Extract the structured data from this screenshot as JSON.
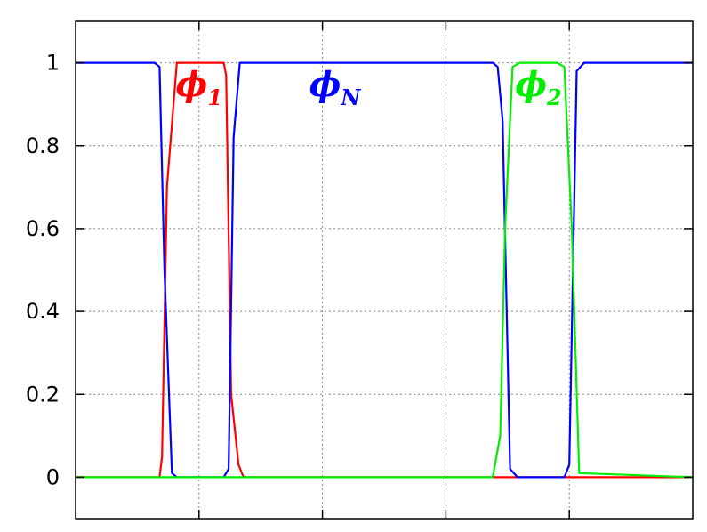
{
  "chart_data": {
    "type": "line",
    "title": "",
    "xlabel": "",
    "ylabel": "",
    "xlim": [
      0,
      5
    ],
    "ylim": [
      -0.1,
      1.1
    ],
    "grid": true,
    "y_ticks": [
      {
        "value": 0,
        "label": "0"
      },
      {
        "value": 0.2,
        "label": "0.2"
      },
      {
        "value": 0.4,
        "label": "0.4"
      },
      {
        "value": 0.6,
        "label": "0.6"
      },
      {
        "value": 0.8,
        "label": "0.8"
      },
      {
        "value": 1,
        "label": "1"
      }
    ],
    "x_ticks": [
      1,
      2,
      3,
      4
    ],
    "series": [
      {
        "name": "phi_1",
        "label_main": "ϕ",
        "label_sub": "1",
        "label_at": [
          1.0,
          0.92
        ],
        "color": "#ff0000",
        "x": [
          0,
          0.68,
          0.7,
          0.74,
          0.82,
          0.9,
          1.2,
          1.22,
          1.26,
          1.32,
          1.36,
          5
        ],
        "y": [
          0,
          0,
          0.05,
          0.7,
          1.0,
          1.0,
          1.0,
          0.97,
          0.2,
          0.03,
          0,
          0
        ]
      },
      {
        "name": "phi_N",
        "label_main": "ϕ",
        "label_sub": "N",
        "label_at": [
          2.1,
          0.92
        ],
        "color": "#0000ff",
        "x": [
          0,
          0.64,
          0.68,
          0.72,
          0.78,
          0.82,
          1.2,
          1.24,
          1.28,
          1.33,
          3.38,
          3.42,
          3.46,
          3.52,
          3.58,
          3.96,
          4.0,
          4.06,
          4.12,
          5
        ],
        "y": [
          1,
          1,
          0.99,
          0.5,
          0.01,
          0,
          0,
          0.02,
          0.82,
          1,
          1,
          0.99,
          0.86,
          0.02,
          0,
          0,
          0.03,
          0.98,
          1,
          1
        ]
      },
      {
        "name": "phi_2",
        "label_main": "ϕ",
        "label_sub": "2",
        "label_at": [
          3.75,
          0.92
        ],
        "color": "#00ee00",
        "x": [
          0,
          3.38,
          3.44,
          3.48,
          3.54,
          3.6,
          3.9,
          3.96,
          4.02,
          4.08,
          5
        ],
        "y": [
          0,
          0,
          0.1,
          0.6,
          0.99,
          1,
          1,
          0.99,
          0.6,
          0.01,
          0
        ]
      }
    ]
  }
}
